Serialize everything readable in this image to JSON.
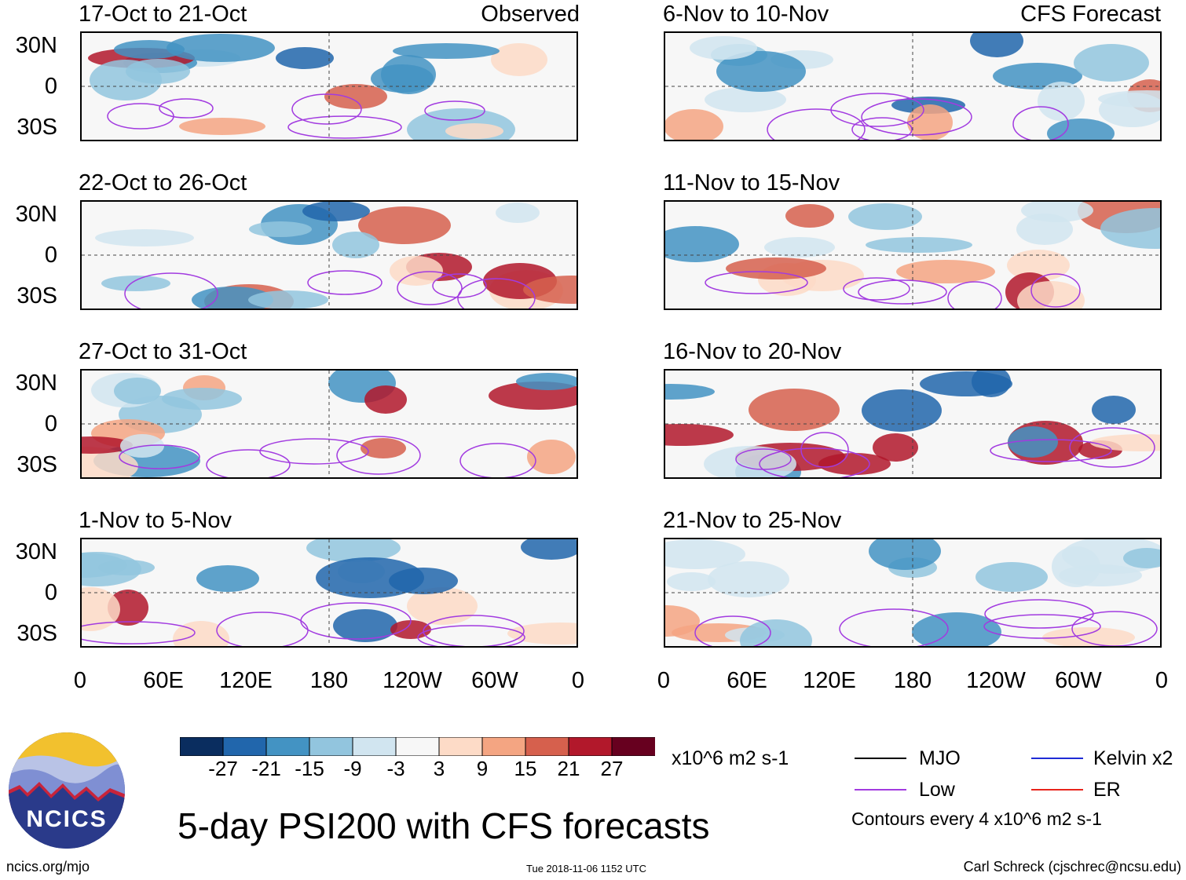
{
  "panels_left": [
    {
      "title": "17-Oct to 21-Oct",
      "tag": "Observed"
    },
    {
      "title": "22-Oct to 26-Oct",
      "tag": ""
    },
    {
      "title": "27-Oct to 31-Oct",
      "tag": ""
    },
    {
      "title": "1-Nov to 5-Nov",
      "tag": ""
    }
  ],
  "panels_right": [
    {
      "title": "6-Nov to 10-Nov",
      "tag": "CFS Forecast"
    },
    {
      "title": "11-Nov to 15-Nov",
      "tag": ""
    },
    {
      "title": "16-Nov to 20-Nov",
      "tag": ""
    },
    {
      "title": "21-Nov to 25-Nov",
      "tag": ""
    }
  ],
  "lat_labels": [
    "30N",
    "0",
    "30S"
  ],
  "lon_labels": [
    "0",
    "60E",
    "120E",
    "180",
    "120W",
    "60W",
    "0"
  ],
  "colorbar": {
    "labels": [
      "-27",
      "-21",
      "-15",
      "-9",
      "-3",
      "3",
      "9",
      "15",
      "21",
      "27"
    ],
    "units": "x10^6 m2 s-1",
    "colors": [
      "#0a2d5f",
      "#2166ac",
      "#4393c3",
      "#92c5de",
      "#d1e5f0",
      "#f7f7f7",
      "#fddbc7",
      "#f4a582",
      "#d6604d",
      "#b2182b",
      "#67001f"
    ]
  },
  "legend": {
    "mjo": "MJO",
    "kelvin": "Kelvin x2",
    "low": "Low",
    "er": "ER",
    "contours": "Contours every 4 x10^6 m2 s-1",
    "colors": {
      "mjo": "#000000",
      "kelvin": "#1f2bd6",
      "low": "#a23be0",
      "er": "#e8241c"
    }
  },
  "logo_text": "NCICS",
  "main_title": "5-day PSI200 with CFS forecasts",
  "footer": {
    "url": "ncics.org/mjo",
    "timestamp": "Tue 2018-11-06 1152 UTC",
    "author": "Carl Schreck (cjschrec@ncsu.edu)"
  }
}
